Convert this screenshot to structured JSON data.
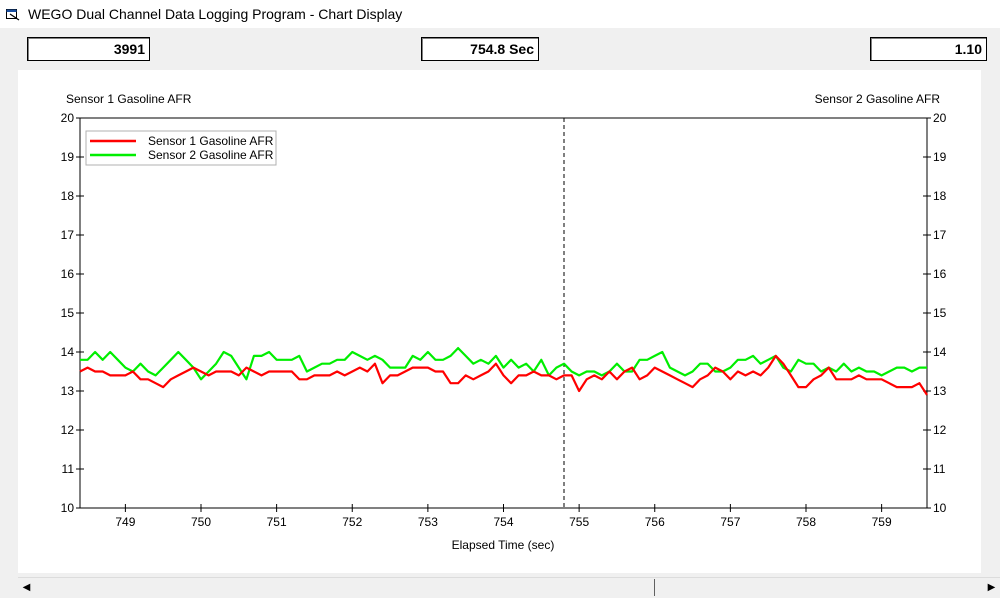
{
  "window": {
    "title": "WEGO Dual Channel Data Logging Program - Chart Display"
  },
  "readouts": {
    "record": "3991",
    "time": "754.8 Sec",
    "value": "1.10"
  },
  "colors": {
    "sensor1": "#ff0000",
    "sensor2": "#00ee00",
    "cursor": "#000000"
  },
  "chart_data": {
    "type": "line",
    "title": "",
    "xlabel": "Elapsed Time (sec)",
    "ylabel_left": "Sensor 1 Gasoline AFR",
    "ylabel_right": "Sensor 2 Gasoline AFR",
    "xlim": [
      748.4,
      759.6
    ],
    "ylim": [
      10,
      20
    ],
    "xticks": [
      "749",
      "750",
      "751",
      "752",
      "753",
      "754",
      "755",
      "756",
      "757",
      "758",
      "759"
    ],
    "yticks": [
      "10",
      "11",
      "12",
      "13",
      "14",
      "15",
      "16",
      "17",
      "18",
      "19",
      "20"
    ],
    "cursor_x": 754.8,
    "legend": {
      "position": "top-left",
      "entries": [
        "Sensor 1 Gasoline AFR",
        "Sensor 2 Gasoline AFR"
      ]
    },
    "x": [
      748.4,
      748.5,
      748.6,
      748.7,
      748.8,
      748.9,
      749.0,
      749.1,
      749.2,
      749.3,
      749.4,
      749.5,
      749.6,
      749.7,
      749.8,
      749.9,
      750.0,
      750.1,
      750.2,
      750.3,
      750.4,
      750.5,
      750.6,
      750.7,
      750.8,
      750.9,
      751.0,
      751.1,
      751.2,
      751.3,
      751.4,
      751.5,
      751.6,
      751.7,
      751.8,
      751.9,
      752.0,
      752.1,
      752.2,
      752.3,
      752.4,
      752.5,
      752.6,
      752.7,
      752.8,
      752.9,
      753.0,
      753.1,
      753.2,
      753.3,
      753.4,
      753.5,
      753.6,
      753.7,
      753.8,
      753.9,
      754.0,
      754.1,
      754.2,
      754.3,
      754.4,
      754.5,
      754.6,
      754.7,
      754.8,
      754.9,
      755.0,
      755.1,
      755.2,
      755.3,
      755.4,
      755.5,
      755.6,
      755.7,
      755.8,
      755.9,
      756.0,
      756.1,
      756.2,
      756.3,
      756.4,
      756.5,
      756.6,
      756.7,
      756.8,
      756.9,
      757.0,
      757.1,
      757.2,
      757.3,
      757.4,
      757.5,
      757.6,
      757.7,
      757.8,
      757.9,
      758.0,
      758.1,
      758.2,
      758.3,
      758.4,
      758.5,
      758.6,
      758.7,
      758.8,
      758.9,
      759.0,
      759.1,
      759.2,
      759.3,
      759.4,
      759.5,
      759.6
    ],
    "series": [
      {
        "name": "Sensor 1 Gasoline AFR",
        "color": "#ff0000",
        "values": [
          13.5,
          13.6,
          13.5,
          13.5,
          13.4,
          13.4,
          13.4,
          13.5,
          13.3,
          13.3,
          13.2,
          13.1,
          13.3,
          13.4,
          13.5,
          13.6,
          13.5,
          13.4,
          13.5,
          13.5,
          13.5,
          13.4,
          13.6,
          13.5,
          13.4,
          13.5,
          13.5,
          13.5,
          13.5,
          13.3,
          13.3,
          13.4,
          13.4,
          13.4,
          13.5,
          13.4,
          13.5,
          13.6,
          13.5,
          13.7,
          13.2,
          13.4,
          13.4,
          13.5,
          13.6,
          13.6,
          13.6,
          13.5,
          13.5,
          13.2,
          13.2,
          13.4,
          13.3,
          13.4,
          13.5,
          13.7,
          13.4,
          13.2,
          13.4,
          13.4,
          13.5,
          13.4,
          13.4,
          13.3,
          13.4,
          13.4,
          13.0,
          13.3,
          13.4,
          13.3,
          13.5,
          13.3,
          13.5,
          13.6,
          13.3,
          13.4,
          13.6,
          13.5,
          13.4,
          13.3,
          13.2,
          13.1,
          13.3,
          13.4,
          13.6,
          13.5,
          13.3,
          13.5,
          13.4,
          13.5,
          13.4,
          13.6,
          13.9,
          13.7,
          13.4,
          13.1,
          13.1,
          13.3,
          13.4,
          13.6,
          13.3,
          13.3,
          13.3,
          13.4,
          13.3,
          13.3,
          13.3,
          13.2,
          13.1,
          13.1,
          13.1,
          13.2,
          12.9
        ]
      },
      {
        "name": "Sensor 2 Gasoline AFR",
        "color": "#00ee00",
        "values": [
          13.8,
          13.8,
          14.0,
          13.8,
          14.0,
          13.8,
          13.6,
          13.5,
          13.7,
          13.5,
          13.4,
          13.6,
          13.8,
          14.0,
          13.8,
          13.6,
          13.3,
          13.5,
          13.7,
          14.0,
          13.9,
          13.6,
          13.3,
          13.9,
          13.9,
          14.0,
          13.8,
          13.8,
          13.8,
          13.9,
          13.5,
          13.6,
          13.7,
          13.7,
          13.8,
          13.8,
          14.0,
          13.9,
          13.8,
          13.9,
          13.8,
          13.6,
          13.6,
          13.6,
          13.9,
          13.8,
          14.0,
          13.8,
          13.8,
          13.9,
          14.1,
          13.9,
          13.7,
          13.8,
          13.7,
          13.9,
          13.6,
          13.8,
          13.6,
          13.7,
          13.5,
          13.8,
          13.4,
          13.6,
          13.7,
          13.5,
          13.4,
          13.5,
          13.5,
          13.4,
          13.5,
          13.7,
          13.5,
          13.5,
          13.8,
          13.8,
          13.9,
          14.0,
          13.6,
          13.5,
          13.4,
          13.5,
          13.7,
          13.7,
          13.5,
          13.5,
          13.6,
          13.8,
          13.8,
          13.9,
          13.7,
          13.8,
          13.9,
          13.6,
          13.5,
          13.8,
          13.7,
          13.7,
          13.5,
          13.6,
          13.5,
          13.7,
          13.5,
          13.6,
          13.5,
          13.5,
          13.4,
          13.5,
          13.6,
          13.6,
          13.5,
          13.6,
          13.6
        ]
      }
    ]
  }
}
